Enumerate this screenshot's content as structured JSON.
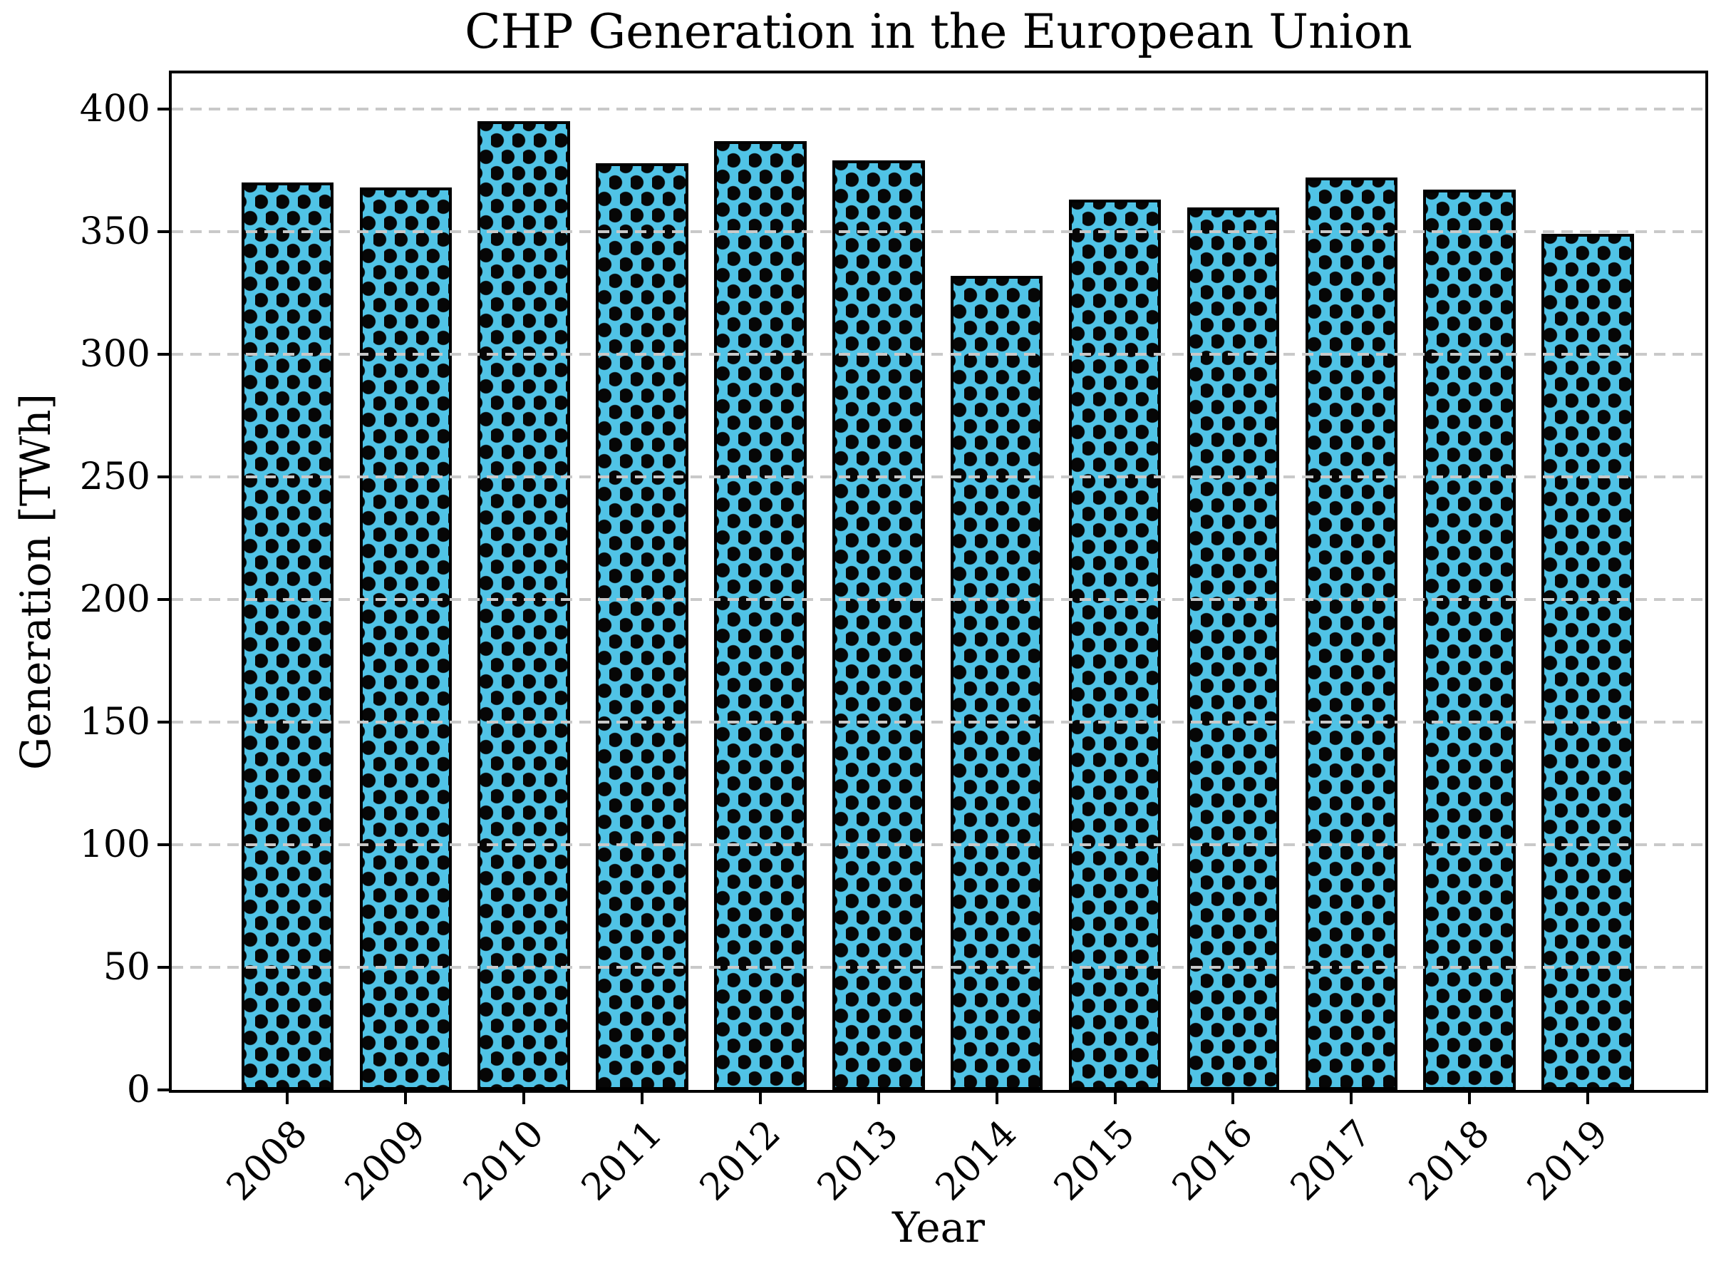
{
  "chart_data": {
    "type": "bar",
    "title": "CHP Generation in the European Union",
    "xlabel": "Year",
    "ylabel": "Generation [TWh]",
    "categories": [
      "2008",
      "2009",
      "2010",
      "2011",
      "2012",
      "2013",
      "2014",
      "2015",
      "2016",
      "2017",
      "2018",
      "2019"
    ],
    "values": [
      370,
      368,
      395,
      378,
      387,
      379,
      332,
      363,
      360,
      372,
      367,
      349
    ],
    "ylim": [
      0,
      414.5
    ],
    "yticks": [
      0,
      50,
      100,
      150,
      200,
      250,
      300,
      350,
      400
    ],
    "grid": "horizontal-dashed",
    "gridlines_above_bars": true,
    "legend": "none",
    "bar_face_color": "#50c3e6",
    "bar_edge_color": "#000000",
    "bar_hatch": "dots",
    "gridline_color": "#c9c9c9",
    "background_color": "#ffffff"
  }
}
